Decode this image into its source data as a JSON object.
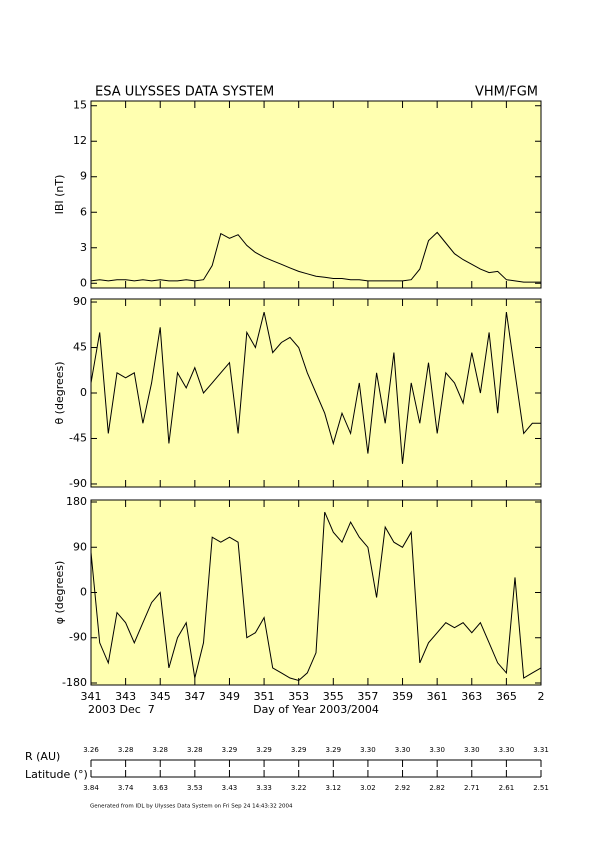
{
  "header": {
    "left": "ESA ULYSSES DATA SYSTEM",
    "right": "VHM/FGM"
  },
  "chart_data": [
    {
      "type": "line",
      "ylabel": "IBI (nT)",
      "color": "#000000",
      "background": "#ffffb0",
      "x": [
        341,
        341.5,
        342,
        342.5,
        343,
        343.5,
        344,
        344.5,
        345,
        345.5,
        346,
        346.5,
        347,
        347.5,
        348,
        348.5,
        349,
        349.5,
        350,
        350.5,
        351,
        351.5,
        352,
        352.5,
        353,
        353.5,
        354,
        354.5,
        355,
        355.5,
        356,
        356.5,
        357,
        357.5,
        358,
        358.5,
        359,
        359.5,
        360,
        360.5,
        361,
        361.5,
        362,
        362.5,
        363,
        363.5,
        364,
        364.5,
        365,
        365.5,
        366,
        366.5,
        367
      ],
      "values": [
        0.2,
        0.3,
        0.2,
        0.3,
        0.3,
        0.2,
        0.3,
        0.2,
        0.3,
        0.2,
        0.2,
        0.3,
        0.2,
        0.3,
        1.5,
        4.2,
        3.8,
        4.1,
        3.2,
        2.6,
        2.2,
        1.9,
        1.6,
        1.3,
        1.0,
        0.8,
        0.6,
        0.5,
        0.4,
        0.4,
        0.3,
        0.3,
        0.2,
        0.2,
        0.2,
        0.2,
        0.2,
        0.3,
        1.2,
        3.6,
        4.3,
        3.4,
        2.5,
        2.0,
        1.6,
        1.2,
        0.9,
        1.0,
        0.3,
        0.2,
        0.1,
        0.1,
        0.1
      ],
      "xlim": [
        341,
        367
      ],
      "xticks": [
        341,
        343,
        345,
        347,
        349,
        351,
        353,
        355,
        357,
        359,
        361,
        363,
        365,
        {
          "value": 367,
          "label": "2"
        }
      ],
      "ylim": [
        -0.4,
        15.4
      ],
      "yticks": [
        0,
        3,
        6,
        9,
        12,
        15
      ]
    },
    {
      "type": "line",
      "ylabel": "θ (degrees)",
      "color": "#000000",
      "background": "#ffffb0",
      "x": [
        341,
        341.5,
        342,
        342.5,
        343,
        343.5,
        344,
        344.5,
        345,
        345.5,
        346,
        346.5,
        347,
        347.5,
        348,
        348.5,
        349,
        349.5,
        350,
        350.5,
        351,
        351.5,
        352,
        352.5,
        353,
        353.5,
        354,
        354.5,
        355,
        355.5,
        356,
        356.5,
        357,
        357.5,
        358,
        358.5,
        359,
        359.5,
        360,
        360.5,
        361,
        361.5,
        362,
        362.5,
        363,
        363.5,
        364,
        364.5,
        365,
        365.5,
        366,
        366.5,
        367
      ],
      "values": [
        10,
        60,
        -40,
        20,
        15,
        20,
        -30,
        10,
        65,
        -50,
        20,
        5,
        25,
        0,
        10,
        20,
        30,
        -40,
        60,
        45,
        80,
        40,
        50,
        55,
        45,
        20,
        0,
        -20,
        -50,
        -20,
        -40,
        10,
        -60,
        20,
        -30,
        40,
        -70,
        10,
        -30,
        30,
        -40,
        20,
        10,
        -10,
        40,
        0,
        60,
        -20,
        80,
        20,
        -40,
        -30,
        -30
      ],
      "xlim": [
        341,
        367
      ],
      "xticks": [
        341,
        343,
        345,
        347,
        349,
        351,
        353,
        355,
        357,
        359,
        361,
        363,
        365,
        {
          "value": 367,
          "label": "2"
        }
      ],
      "ylim": [
        -93,
        93
      ],
      "yticks": [
        -90,
        -45,
        0,
        45,
        90
      ]
    },
    {
      "type": "line",
      "ylabel": "φ (degrees)",
      "color": "#000000",
      "background": "#ffffb0",
      "xlabel": "Day of Year 2003/2004",
      "start_date": "2003 Dec  7",
      "x": [
        341,
        341.5,
        342,
        342.5,
        343,
        343.5,
        344,
        344.5,
        345,
        345.5,
        346,
        346.5,
        347,
        347.5,
        348,
        348.5,
        349,
        349.5,
        350,
        350.5,
        351,
        351.5,
        352,
        352.5,
        353,
        353.5,
        354,
        354.5,
        355,
        355.5,
        356,
        356.5,
        357,
        357.5,
        358,
        358.5,
        359,
        359.5,
        360,
        360.5,
        361,
        361.5,
        362,
        362.5,
        363,
        363.5,
        364,
        364.5,
        365,
        365.5,
        366,
        366.5,
        367
      ],
      "values": [
        80,
        -100,
        -140,
        -40,
        -60,
        -100,
        -60,
        -20,
        0,
        -150,
        -90,
        -60,
        -170,
        -100,
        110,
        100,
        110,
        100,
        -90,
        -80,
        -50,
        -150,
        -160,
        -170,
        -175,
        -160,
        -120,
        160,
        120,
        100,
        140,
        110,
        90,
        -10,
        130,
        100,
        90,
        120,
        -140,
        -100,
        -80,
        -60,
        -70,
        -60,
        -80,
        -60,
        -100,
        -140,
        -160,
        30,
        -170,
        -160,
        -150
      ],
      "xlim": [
        341,
        367
      ],
      "xticks": [
        341,
        343,
        345,
        347,
        349,
        351,
        353,
        355,
        357,
        359,
        361,
        363,
        365,
        {
          "value": 367,
          "label": "2"
        }
      ],
      "ylim": [
        -184,
        184
      ],
      "yticks": [
        -180,
        -90,
        0,
        90,
        180
      ]
    }
  ],
  "ephemeris": {
    "r_label": "R (AU)",
    "r_values": [
      "3.26",
      "3.28",
      "3.28",
      "3.28",
      "3.29",
      "3.29",
      "3.29",
      "3.29",
      "3.30",
      "3.30",
      "3.30",
      "3.30",
      "3.30",
      "3.31"
    ],
    "lat_label": "Latitude (°)",
    "lat_values": [
      "3.84",
      "3.74",
      "3.63",
      "3.53",
      "3.43",
      "3.33",
      "3.22",
      "3.12",
      "3.02",
      "2.92",
      "2.82",
      "2.71",
      "2.61",
      "2.51"
    ]
  },
  "footer": "Generated from IDL by Ulysses Data System on Fri Sep 24 14:43:32 2004"
}
